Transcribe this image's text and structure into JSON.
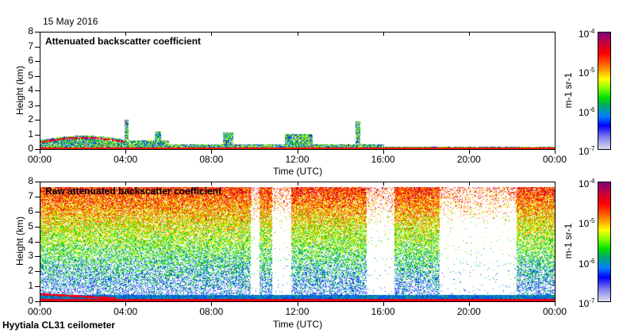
{
  "date": "15 May 2016",
  "footer": "Hyytiala CL31 ceilometer",
  "chart_data": [
    {
      "type": "heatmap",
      "title": "Attenuated backscatter coefficient",
      "xlabel": "Time (UTC)",
      "ylabel": "Height (km)",
      "xticks": [
        "00:00",
        "04:00",
        "08:00",
        "12:00",
        "16:00",
        "20:00",
        "00:00"
      ],
      "yticks": [
        "0",
        "1",
        "2",
        "3",
        "4",
        "5",
        "6",
        "7",
        "8"
      ],
      "ylim": [
        0,
        8
      ],
      "colorbar": {
        "label": "m-1 sr-1",
        "ticks": [
          "10-7",
          "10-6",
          "10-5",
          "10-4"
        ],
        "range": [
          1e-07,
          0.0001
        ],
        "scale": "log"
      }
    },
    {
      "type": "heatmap",
      "title": "Raw attenuated backscatter coefficient",
      "xlabel": "Time (UTC)",
      "ylabel": "Height (km)",
      "xticks": [
        "00:00",
        "04:00",
        "08:00",
        "12:00",
        "16:00",
        "20:00",
        "00:00"
      ],
      "yticks": [
        "0",
        "1",
        "2",
        "3",
        "4",
        "5",
        "6",
        "7",
        "8"
      ],
      "ylim": [
        0,
        8
      ],
      "colorbar": {
        "label": "m-1 sr-1",
        "ticks": [
          "10-7",
          "10-6",
          "10-5",
          "10-4"
        ],
        "range": [
          1e-07,
          0.0001
        ],
        "scale": "log"
      }
    }
  ]
}
